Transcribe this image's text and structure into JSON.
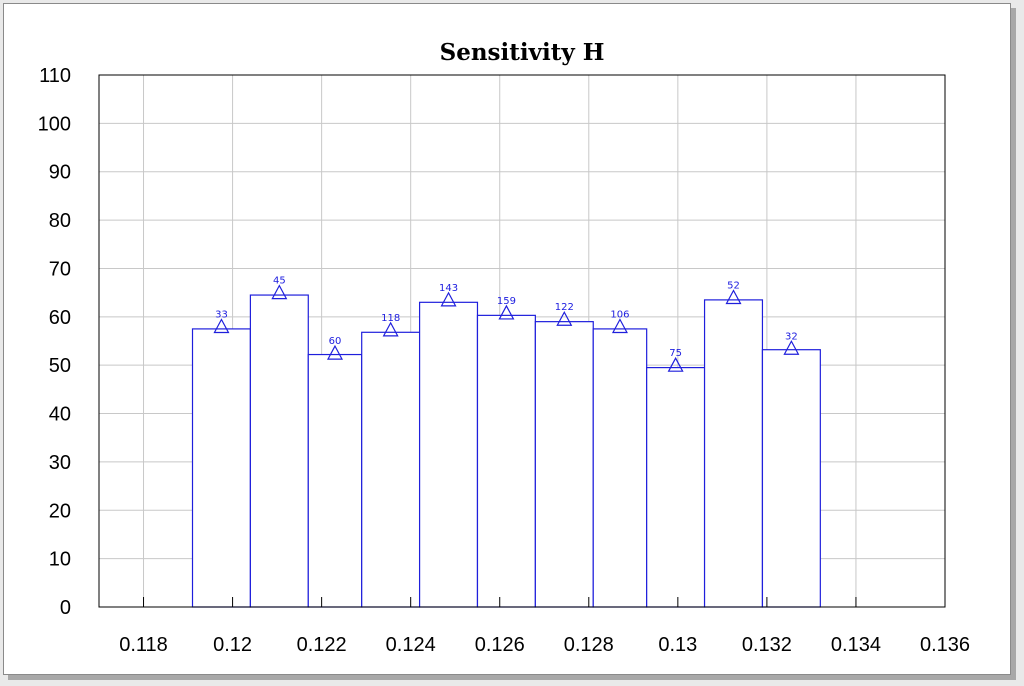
{
  "chart_data": {
    "type": "bar",
    "title": "Sensitivity H",
    "xlabel": "",
    "ylabel": "",
    "xlim": [
      0.117,
      0.136
    ],
    "ylim": [
      0,
      110
    ],
    "grid": true,
    "x_ticks": [
      "0.118",
      "0.12",
      "0.122",
      "0.124",
      "0.126",
      "0.128",
      "0.13",
      "0.132",
      "0.134",
      "0.136"
    ],
    "x_tick_values": [
      0.118,
      0.12,
      0.122,
      0.124,
      0.126,
      0.128,
      0.13,
      0.132,
      0.134,
      0.136
    ],
    "y_ticks": [
      "0",
      "10",
      "20",
      "30",
      "40",
      "50",
      "60",
      "70",
      "80",
      "90",
      "100",
      "110"
    ],
    "y_tick_values": [
      0,
      10,
      20,
      30,
      40,
      50,
      60,
      70,
      80,
      90,
      100,
      110
    ],
    "bins": [
      {
        "x0": 0.1191,
        "x1": 0.1204,
        "value": 57.5,
        "marker": 58.0,
        "label": "33"
      },
      {
        "x0": 0.1204,
        "x1": 0.1217,
        "value": 64.5,
        "marker": 65.0,
        "label": "45"
      },
      {
        "x0": 0.1217,
        "x1": 0.1229,
        "value": 52.2,
        "marker": 52.5,
        "label": "60"
      },
      {
        "x0": 0.1229,
        "x1": 0.1242,
        "value": 56.8,
        "marker": 57.3,
        "label": "118"
      },
      {
        "x0": 0.1242,
        "x1": 0.1255,
        "value": 63.0,
        "marker": 63.5,
        "label": "143"
      },
      {
        "x0": 0.1255,
        "x1": 0.1268,
        "value": 60.3,
        "marker": 60.8,
        "label": "159"
      },
      {
        "x0": 0.1268,
        "x1": 0.1281,
        "value": 59.0,
        "marker": 59.5,
        "label": "122"
      },
      {
        "x0": 0.1281,
        "x1": 0.1293,
        "value": 57.5,
        "marker": 58.0,
        "label": "106"
      },
      {
        "x0": 0.1293,
        "x1": 0.1306,
        "value": 49.5,
        "marker": 50.0,
        "label": "75"
      },
      {
        "x0": 0.1306,
        "x1": 0.1319,
        "value": 63.5,
        "marker": 64.0,
        "label": "52"
      },
      {
        "x0": 0.1319,
        "x1": 0.1332,
        "value": 53.2,
        "marker": 53.5,
        "label": "32"
      }
    ],
    "colors": {
      "bar": "#1f1fdc",
      "grid": "#c8c8c8",
      "axis": "#000000"
    }
  }
}
